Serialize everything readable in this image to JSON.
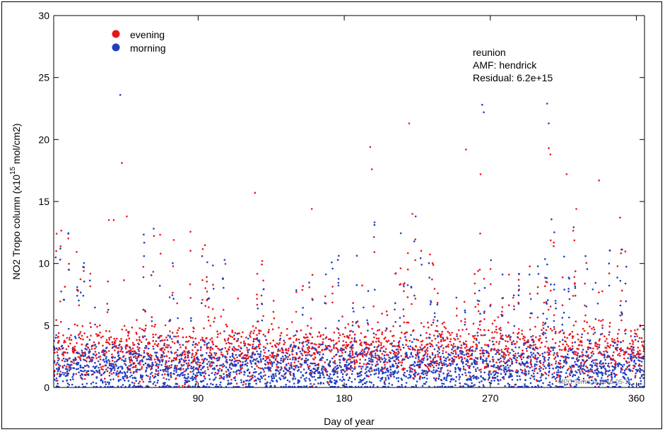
{
  "chart_data": {
    "type": "scatter",
    "xlabel": "Day of year",
    "ylabel_base": "NO2 Tropo column (x10",
    "ylabel_exp": "15",
    "ylabel_unit": " mol/cm2)",
    "xlim": [
      1,
      365
    ],
    "ylim": [
      0,
      30
    ],
    "xticks": [
      90,
      180,
      270,
      360
    ],
    "yticks": [
      0,
      5,
      10,
      15,
      20,
      25,
      30
    ],
    "grid": false,
    "legend_placement": "top-left",
    "series": [
      {
        "name": "evening",
        "color": "#e8141c"
      },
      {
        "name": "morning",
        "color": "#1f3fc0"
      }
    ],
    "annotations": [
      "reunion",
      "AMF: hendrick",
      "Residual: 6.2e+15"
    ],
    "watermark": "MPC Temis.nl 2016-05-11",
    "outlier_points": [
      {
        "series": "morning",
        "x": 42,
        "y": 23.6
      },
      {
        "series": "evening",
        "x": 43,
        "y": 18.1
      },
      {
        "series": "morning",
        "x": 10,
        "y": 12.4
      },
      {
        "series": "evening",
        "x": 35,
        "y": 13.5
      },
      {
        "series": "evening",
        "x": 38,
        "y": 13.5
      },
      {
        "series": "evening",
        "x": 46,
        "y": 13.8
      },
      {
        "series": "evening",
        "x": 75,
        "y": 11.9
      },
      {
        "series": "evening",
        "x": 125,
        "y": 15.7
      },
      {
        "series": "evening",
        "x": 160,
        "y": 14.4
      },
      {
        "series": "evening",
        "x": 196,
        "y": 19.4
      },
      {
        "series": "evening",
        "x": 197,
        "y": 17.6
      },
      {
        "series": "evening",
        "x": 220,
        "y": 21.3
      },
      {
        "series": "evening",
        "x": 255,
        "y": 19.2
      },
      {
        "series": "morning",
        "x": 265,
        "y": 22.8
      },
      {
        "series": "morning",
        "x": 266,
        "y": 22.2
      },
      {
        "series": "evening",
        "x": 264,
        "y": 17.2
      },
      {
        "series": "morning",
        "x": 305,
        "y": 22.9
      },
      {
        "series": "morning",
        "x": 306,
        "y": 21.3
      },
      {
        "series": "evening",
        "x": 307,
        "y": 18.8
      },
      {
        "series": "evening",
        "x": 306,
        "y": 19.3
      },
      {
        "series": "evening",
        "x": 317,
        "y": 17.2
      },
      {
        "series": "evening",
        "x": 337,
        "y": 16.7
      },
      {
        "series": "evening",
        "x": 323,
        "y": 14.4
      },
      {
        "series": "evening",
        "x": 350,
        "y": 13.7
      },
      {
        "series": "evening",
        "x": 222,
        "y": 14.0
      },
      {
        "series": "morning",
        "x": 224,
        "y": 13.8
      }
    ]
  }
}
